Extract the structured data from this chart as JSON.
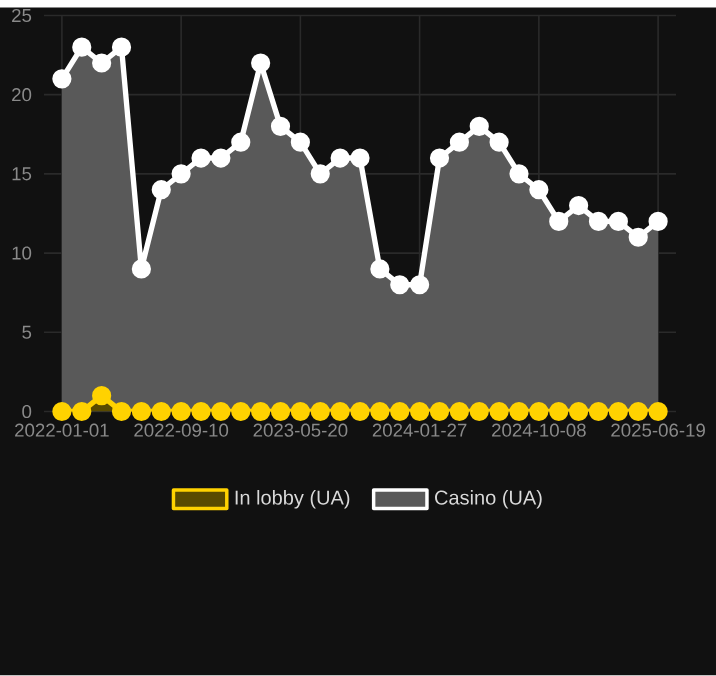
{
  "chart_data": {
    "type": "area",
    "categories": [
      "2022-01-01",
      null,
      null,
      null,
      null,
      null,
      "2022-09-10",
      null,
      null,
      null,
      null,
      null,
      "2023-05-20",
      null,
      null,
      null,
      null,
      null,
      "2024-01-27",
      null,
      null,
      null,
      null,
      null,
      "2024-10-08",
      null,
      null,
      null,
      null,
      null,
      "2025-06-19"
    ],
    "series": [
      {
        "name": "In lobby (UA)",
        "color": "#ffd200",
        "values": [
          0,
          0,
          1,
          0,
          0,
          0,
          0,
          0,
          0,
          0,
          0,
          0,
          0,
          0,
          0,
          0,
          0,
          0,
          0,
          0,
          0,
          0,
          0,
          0,
          0,
          0,
          0,
          0,
          0,
          0,
          0
        ]
      },
      {
        "name": "Casino (UA)",
        "color": "#ffffff",
        "values": [
          21,
          23,
          22,
          23,
          9,
          14,
          15,
          16,
          16,
          17,
          22,
          18,
          17,
          15,
          16,
          16,
          9,
          8,
          8,
          16,
          17,
          18,
          17,
          15,
          14,
          12,
          13,
          12,
          12,
          11,
          12
        ]
      }
    ],
    "ylim": [
      0,
      25
    ],
    "yticks": [
      0,
      5,
      10,
      15,
      20,
      25
    ],
    "grid": true,
    "legend": "bottom",
    "marker": "circle",
    "line_style": "solid"
  }
}
